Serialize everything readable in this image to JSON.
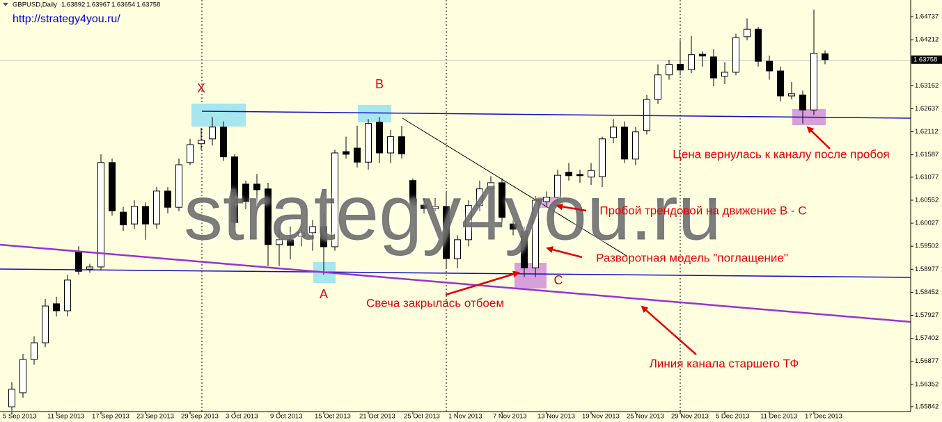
{
  "site_link": "http://strategy4you.ru/",
  "watermark": "strategy4you.ru",
  "chart_data": {
    "type": "candlestick",
    "title": "GBPUSD,Daily",
    "up_color": "#ffffff",
    "down_color": "#000000",
    "outline_color": "#000000",
    "categories": [
      "5 Sep 2013",
      null,
      null,
      null,
      "11 Sep 2013",
      null,
      null,
      null,
      "17 Sep 2013",
      null,
      null,
      null,
      "23 Sep 2013",
      null,
      null,
      null,
      "29 Sep 2013",
      null,
      null,
      null,
      "3 Oct 2013",
      null,
      null,
      null,
      "9 Oct 2013",
      null,
      null,
      null,
      "15 Oct 2013",
      null,
      null,
      null,
      "21 Oct 2013",
      null,
      null,
      null,
      "25 Oct 2013",
      null,
      null,
      null,
      "1 Nov 2013",
      null,
      null,
      null,
      "7 Nov 2013",
      null,
      null,
      null,
      "13 Nov 2013",
      null,
      null,
      null,
      "19 Nov 2013",
      null,
      null,
      null,
      "25 Nov 2013",
      null,
      null,
      null,
      "29 Nov 2013",
      null,
      null,
      null,
      "5 Dec 2013",
      null,
      null,
      null,
      "11 Dec 2013",
      null,
      null,
      null,
      "17 Dec 2013",
      null
    ],
    "open": [
      1.5584,
      1.5616,
      1.5692,
      1.573,
      1.5819,
      1.5803,
      1.5938,
      1.5898,
      1.5903,
      1.6141,
      1.6028,
      1.6001,
      1.6041,
      1.6001,
      1.6076,
      1.6039,
      1.6141,
      1.6184,
      1.6195,
      1.6222,
      1.6154,
      1.6092,
      1.6092,
      1.6081,
      1.5954,
      1.5965,
      1.5973,
      1.5981,
      1.5995,
      1.5949,
      1.6166,
      1.6174,
      1.6142,
      1.6233,
      1.6163,
      1.62,
      1.61,
      1.6044,
      1.6036,
      1.6041,
      1.5922,
      1.5965,
      1.6043,
      1.6081,
      1.6095,
      1.6001,
      1.5985,
      1.5901,
      1.6052,
      1.6062,
      1.6119,
      1.6114,
      1.6108,
      1.6109,
      1.6198,
      1.6222,
      1.6149,
      1.6214,
      1.6285,
      1.6341,
      1.6365,
      1.6353,
      1.6388,
      1.6382,
      1.6338,
      1.6347,
      1.6428,
      1.6445,
      1.6372,
      1.635,
      1.6293,
      1.6295,
      1.6261,
      1.63892
    ],
    "high": [
      1.564,
      1.5705,
      1.5745,
      1.583,
      1.5835,
      1.5885,
      1.595,
      1.591,
      1.616,
      1.615,
      1.604,
      1.6055,
      1.605,
      1.6085,
      1.6085,
      1.615,
      1.6195,
      1.622,
      1.6245,
      1.6235,
      1.616,
      1.61,
      1.6115,
      1.6095,
      1.599,
      1.5995,
      1.5995,
      1.601,
      1.6025,
      1.617,
      1.62,
      1.6225,
      1.624,
      1.6245,
      1.6215,
      1.6225,
      1.6105,
      1.606,
      1.606,
      1.6075,
      1.5975,
      1.6055,
      1.61,
      1.611,
      1.6105,
      1.601,
      1.5995,
      1.6065,
      1.6075,
      1.6125,
      1.614,
      1.6125,
      1.614,
      1.62,
      1.624,
      1.6235,
      1.6222,
      1.6295,
      1.6365,
      1.6375,
      1.642,
      1.643,
      1.6395,
      1.64,
      1.637,
      1.6435,
      1.647,
      1.645,
      1.6385,
      1.636,
      1.6325,
      1.6305,
      1.649,
      1.63967
    ],
    "low": [
      1.5575,
      1.5605,
      1.568,
      1.572,
      1.579,
      1.579,
      1.5885,
      1.589,
      1.5895,
      1.602,
      1.5985,
      1.599,
      1.5965,
      1.599,
      1.6025,
      1.603,
      1.6135,
      1.617,
      1.618,
      1.6145,
      1.5995,
      1.6035,
      1.604,
      1.5905,
      1.5905,
      1.592,
      1.595,
      1.594,
      1.5885,
      1.594,
      1.615,
      1.613,
      1.6125,
      1.614,
      1.614,
      1.615,
      1.603,
      1.6025,
      1.603,
      1.59,
      1.59,
      1.595,
      1.603,
      1.607,
      1.6005,
      1.5975,
      1.588,
      1.588,
      1.604,
      1.605,
      1.61,
      1.6095,
      1.609,
      1.6085,
      1.6185,
      1.614,
      1.6135,
      1.6205,
      1.6275,
      1.633,
      1.634,
      1.6345,
      1.636,
      1.6315,
      1.632,
      1.634,
      1.642,
      1.636,
      1.633,
      1.628,
      1.6285,
      1.623,
      1.625,
      1.63654
    ],
    "close": [
      1.5624,
      1.5692,
      1.573,
      1.5814,
      1.5803,
      1.5873,
      1.5893,
      1.5903,
      1.6141,
      1.6031,
      1.5999,
      1.6041,
      1.6001,
      1.6076,
      1.6039,
      1.6136,
      1.6182,
      1.6192,
      1.6222,
      1.6154,
      1.6004,
      1.6052,
      1.6079,
      1.5954,
      1.5965,
      1.5952,
      1.5981,
      1.5995,
      1.5949,
      1.6163,
      1.616,
      1.6142,
      1.623,
      1.6163,
      1.62,
      1.6161,
      1.6044,
      1.6036,
      1.6041,
      1.5922,
      1.5965,
      1.6043,
      1.6081,
      1.6095,
      1.6016,
      1.5989,
      1.5901,
      1.6055,
      1.6062,
      1.6112,
      1.6111,
      1.6111,
      1.6123,
      1.6195,
      1.6222,
      1.6149,
      1.6211,
      1.6285,
      1.6341,
      1.6365,
      1.6352,
      1.6387,
      1.6384,
      1.6334,
      1.6347,
      1.6426,
      1.6445,
      1.6372,
      1.635,
      1.6293,
      1.6298,
      1.6261,
      1.639,
      1.63758
    ],
    "ylim": [
      1.55731,
      1.65118
    ],
    "yticks": [
      1.64737,
      1.64212,
      1.63162,
      1.62637,
      1.62112,
      1.61587,
      1.61077,
      1.60552,
      1.60027,
      1.59502,
      1.58977,
      1.58452,
      1.57927,
      1.57402,
      1.56877,
      1.56352,
      1.55842
    ],
    "points": [
      "X",
      "B",
      "A",
      "C"
    ],
    "annotations": [
      "Цена вернулась к каналу после пробоя",
      "Пробой трендовой на движение В - С",
      "Разворотная модель \"поглащение\"",
      "Свеча закрылась отбоем",
      "Линия канала старшего ТФ"
    ]
  }
}
